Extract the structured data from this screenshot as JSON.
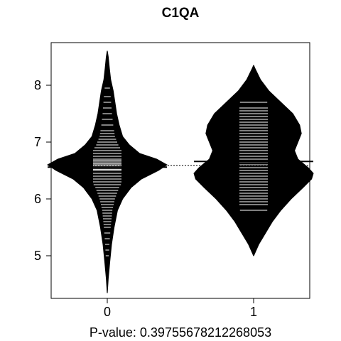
{
  "chart_data": {
    "type": "beanplot",
    "title": "C1QA",
    "xlabel": "P-value: 0.39755678212268053",
    "ylabel": "",
    "categories": [
      "0",
      "1"
    ],
    "ylim": [
      4.25,
      8.75
    ],
    "yticks": [
      5,
      6,
      7,
      8
    ],
    "grid": false,
    "overall_mean": 6.59,
    "bean_color": "#000000",
    "line_color": "#ffffff",
    "series": [
      {
        "name": "0",
        "mean": 6.56,
        "density": [
          [
            4.35,
            0.1
          ],
          [
            4.6,
            1.2
          ],
          [
            4.9,
            3
          ],
          [
            5.2,
            5
          ],
          [
            5.5,
            8
          ],
          [
            5.8,
            12
          ],
          [
            6.0,
            18
          ],
          [
            6.2,
            28
          ],
          [
            6.35,
            40
          ],
          [
            6.5,
            60
          ],
          [
            6.6,
            70
          ],
          [
            6.7,
            58
          ],
          [
            6.8,
            38
          ],
          [
            6.95,
            26
          ],
          [
            7.1,
            18
          ],
          [
            7.3,
            14
          ],
          [
            7.5,
            11
          ],
          [
            7.7,
            9
          ],
          [
            7.9,
            7
          ],
          [
            8.1,
            4
          ],
          [
            8.3,
            2.5
          ],
          [
            8.5,
            1.2
          ],
          [
            8.6,
            0.1
          ]
        ],
        "observations": [
          5.0,
          5.1,
          5.2,
          5.3,
          5.4,
          5.5,
          5.55,
          5.6,
          5.65,
          5.7,
          5.75,
          5.8,
          5.85,
          5.9,
          5.95,
          6.0,
          6.05,
          6.1,
          6.15,
          6.2,
          6.25,
          6.3,
          6.35,
          6.4,
          6.45,
          6.5,
          6.52,
          6.55,
          6.58,
          6.6,
          6.62,
          6.65,
          6.68,
          6.7,
          6.75,
          6.8,
          6.85,
          6.9,
          6.95,
          7.0,
          7.05,
          7.1,
          7.15,
          7.2,
          7.3,
          7.4,
          7.5,
          7.6,
          7.7,
          7.8,
          7.95
        ]
      },
      {
        "name": "1",
        "mean": 6.66,
        "density": [
          [
            5.0,
            0.1
          ],
          [
            5.2,
            6
          ],
          [
            5.4,
            14
          ],
          [
            5.6,
            22
          ],
          [
            5.8,
            32
          ],
          [
            6.0,
            44
          ],
          [
            6.2,
            58
          ],
          [
            6.35,
            68
          ],
          [
            6.45,
            70
          ],
          [
            6.55,
            64
          ],
          [
            6.7,
            52
          ],
          [
            6.85,
            48
          ],
          [
            7.0,
            52
          ],
          [
            7.15,
            56
          ],
          [
            7.3,
            54
          ],
          [
            7.5,
            46
          ],
          [
            7.7,
            32
          ],
          [
            7.9,
            18
          ],
          [
            8.1,
            8
          ],
          [
            8.3,
            1.5
          ],
          [
            8.35,
            0.1
          ]
        ],
        "observations": [
          5.8,
          5.9,
          5.95,
          6.0,
          6.05,
          6.1,
          6.15,
          6.2,
          6.25,
          6.3,
          6.35,
          6.4,
          6.45,
          6.5,
          6.55,
          6.6,
          6.65,
          6.7,
          6.75,
          6.8,
          6.85,
          6.9,
          6.95,
          7.0,
          7.05,
          7.1,
          7.15,
          7.2,
          7.25,
          7.3,
          7.35,
          7.4,
          7.45,
          7.5,
          7.55,
          7.6,
          7.7
        ]
      }
    ]
  }
}
